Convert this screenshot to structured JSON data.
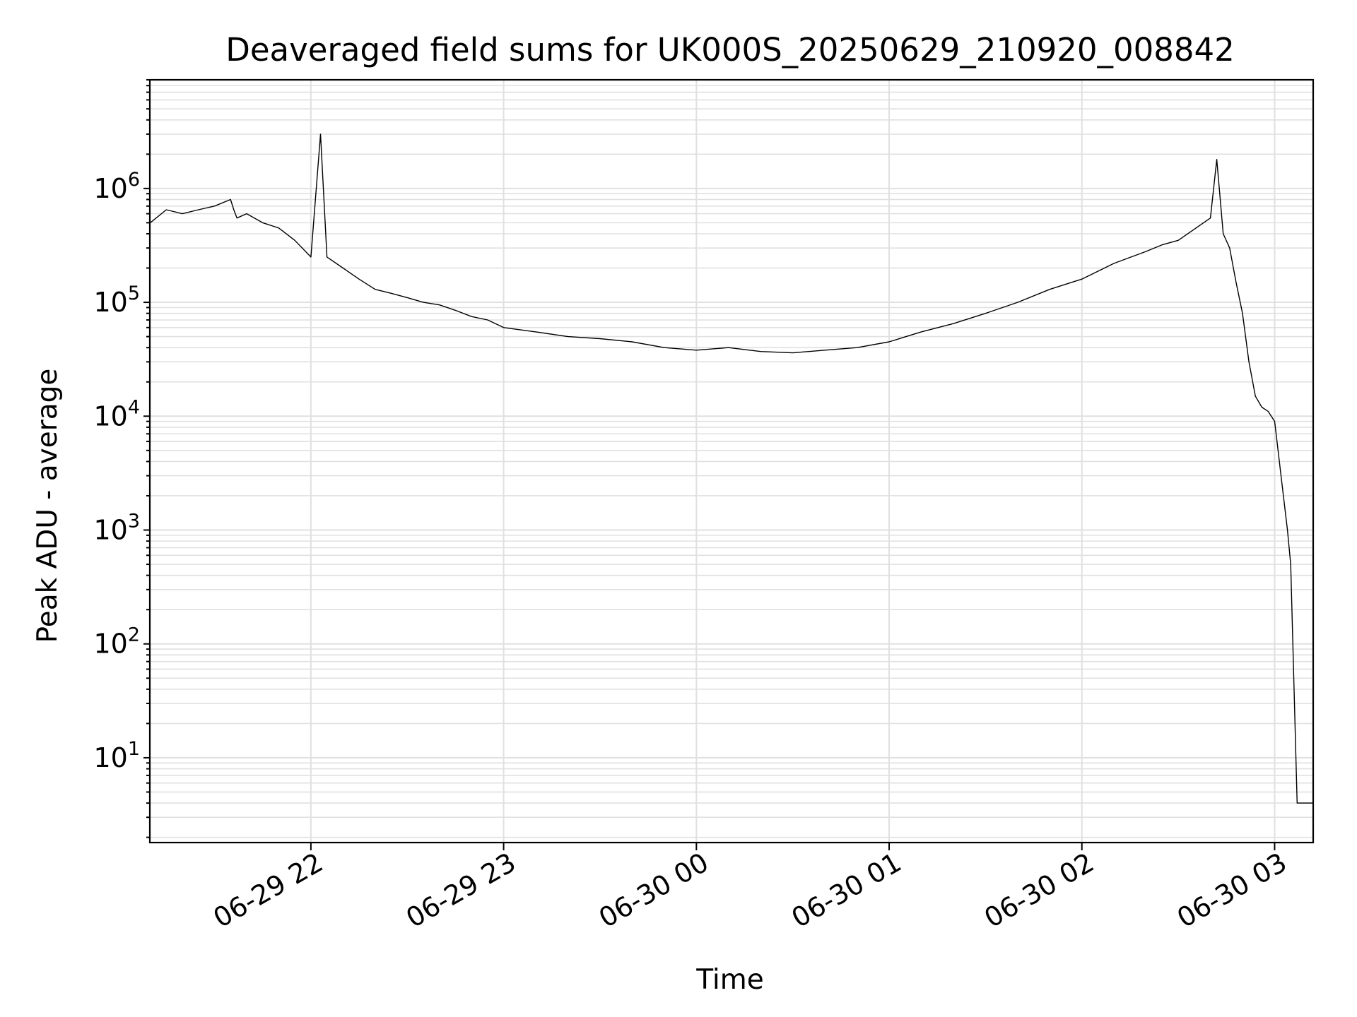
{
  "chart_data": {
    "type": "line",
    "title": "Deaveraged field sums for UK000S_20250629_210920_008842",
    "xlabel": "Time",
    "ylabel": "Peak ADU - average",
    "yscale": "log",
    "ylim": [
      1.8,
      9000000
    ],
    "xlim": [
      "2025-06-29 21:09:52",
      "2025-06-30 03:12:00"
    ],
    "grid": true,
    "grid_color": "#e0e0e0",
    "line_color": "#000000",
    "x_ticks": [
      {
        "value": "2025-06-29 22:00",
        "label": "06-29 22"
      },
      {
        "value": "2025-06-29 23:00",
        "label": "06-29 23"
      },
      {
        "value": "2025-06-30 00:00",
        "label": "06-30 00"
      },
      {
        "value": "2025-06-30 01:00",
        "label": "06-30 01"
      },
      {
        "value": "2025-06-30 02:00",
        "label": "06-30 02"
      },
      {
        "value": "2025-06-30 03:00",
        "label": "06-30 03"
      }
    ],
    "y_ticks": [
      {
        "value": 10,
        "base": "10",
        "exp": "1"
      },
      {
        "value": 100,
        "base": "10",
        "exp": "2"
      },
      {
        "value": 1000,
        "base": "10",
        "exp": "3"
      },
      {
        "value": 10000,
        "base": "10",
        "exp": "4"
      },
      {
        "value": 100000,
        "base": "10",
        "exp": "5"
      },
      {
        "value": 1000000,
        "base": "10",
        "exp": "6"
      }
    ],
    "series": [
      {
        "x": [
          "2025-06-29 21:10",
          "2025-06-29 21:15",
          "2025-06-29 21:20",
          "2025-06-29 21:25",
          "2025-06-29 21:30",
          "2025-06-29 21:35",
          "2025-06-29 21:36",
          "2025-06-29 21:37",
          "2025-06-29 21:40",
          "2025-06-29 21:45",
          "2025-06-29 21:50",
          "2025-06-29 21:55",
          "2025-06-29 22:00",
          "2025-06-29 22:03",
          "2025-06-29 22:05",
          "2025-06-29 22:10",
          "2025-06-29 22:15",
          "2025-06-29 22:20",
          "2025-06-29 22:25",
          "2025-06-29 22:30",
          "2025-06-29 22:35",
          "2025-06-29 22:40",
          "2025-06-29 22:45",
          "2025-06-29 22:50",
          "2025-06-29 22:55",
          "2025-06-29 23:00",
          "2025-06-29 23:10",
          "2025-06-29 23:20",
          "2025-06-29 23:30",
          "2025-06-29 23:40",
          "2025-06-29 23:50",
          "2025-06-30 00:00",
          "2025-06-30 00:10",
          "2025-06-30 00:20",
          "2025-06-30 00:30",
          "2025-06-30 00:40",
          "2025-06-30 00:50",
          "2025-06-30 01:00",
          "2025-06-30 01:10",
          "2025-06-30 01:20",
          "2025-06-30 01:30",
          "2025-06-30 01:40",
          "2025-06-30 01:50",
          "2025-06-30 02:00",
          "2025-06-30 02:10",
          "2025-06-30 02:20",
          "2025-06-30 02:25",
          "2025-06-30 02:30",
          "2025-06-30 02:40",
          "2025-06-30 02:42",
          "2025-06-30 02:44",
          "2025-06-30 02:46",
          "2025-06-30 02:48",
          "2025-06-30 02:50",
          "2025-06-30 02:52",
          "2025-06-30 02:54",
          "2025-06-30 02:56",
          "2025-06-30 02:58",
          "2025-06-30 03:00",
          "2025-06-30 03:02",
          "2025-06-30 03:04",
          "2025-06-30 03:05",
          "2025-06-30 03:07",
          "2025-06-30 03:10",
          "2025-06-30 03:12"
        ],
        "y": [
          500000,
          650000,
          600000,
          650000,
          700000,
          800000,
          650000,
          550000,
          600000,
          500000,
          450000,
          350000,
          250000,
          3000000,
          250000,
          200000,
          160000,
          130000,
          120000,
          110000,
          100000,
          95000,
          85000,
          75000,
          70000,
          60000,
          55000,
          50000,
          48000,
          45000,
          40000,
          38000,
          40000,
          37000,
          36000,
          38000,
          40000,
          45000,
          55000,
          65000,
          80000,
          100000,
          130000,
          160000,
          220000,
          280000,
          320000,
          350000,
          550000,
          1800000,
          400000,
          300000,
          150000,
          80000,
          30000,
          15000,
          12000,
          11000,
          9000,
          3000,
          1000,
          500,
          4,
          4,
          4
        ]
      }
    ]
  }
}
